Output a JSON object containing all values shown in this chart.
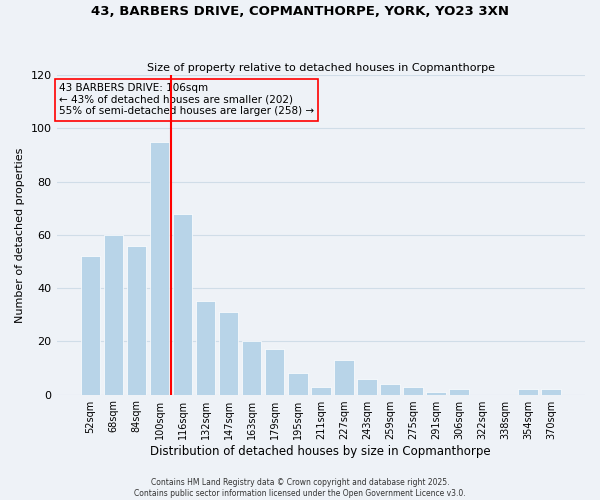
{
  "title": "43, BARBERS DRIVE, COPMANTHORPE, YORK, YO23 3XN",
  "subtitle": "Size of property relative to detached houses in Copmanthorpe",
  "xlabel": "Distribution of detached houses by size in Copmanthorpe",
  "ylabel": "Number of detached properties",
  "bar_labels": [
    "52sqm",
    "68sqm",
    "84sqm",
    "100sqm",
    "116sqm",
    "132sqm",
    "147sqm",
    "163sqm",
    "179sqm",
    "195sqm",
    "211sqm",
    "227sqm",
    "243sqm",
    "259sqm",
    "275sqm",
    "291sqm",
    "306sqm",
    "322sqm",
    "338sqm",
    "354sqm",
    "370sqm"
  ],
  "bar_heights": [
    52,
    60,
    56,
    95,
    68,
    35,
    31,
    20,
    17,
    8,
    3,
    13,
    6,
    4,
    3,
    1,
    2,
    0,
    0,
    2,
    2
  ],
  "bar_color": "#b8d4e8",
  "grid_color": "#d0dde8",
  "background_color": "#eef2f7",
  "annotation_title": "43 BARBERS DRIVE: 106sqm",
  "annotation_line1": "← 43% of detached houses are smaller (202)",
  "annotation_line2": "55% of semi-detached houses are larger (258) →",
  "ylim": [
    0,
    120
  ],
  "yticks": [
    0,
    20,
    40,
    60,
    80,
    100,
    120
  ],
  "footer1": "Contains HM Land Registry data © Crown copyright and database right 2025.",
  "footer2": "Contains public sector information licensed under the Open Government Licence v3.0."
}
